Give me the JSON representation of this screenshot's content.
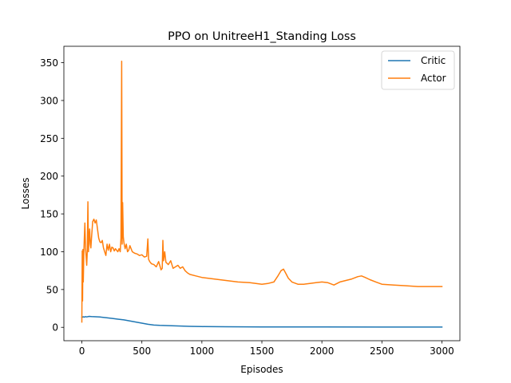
{
  "chart_data": {
    "type": "line",
    "title": "PPO on UnitreeH1_Standing Loss",
    "xlabel": "Episodes",
    "ylabel": "Losses",
    "xlim": [
      -150,
      3150
    ],
    "ylim": [
      -17.7,
      371.7
    ],
    "xticks": [
      0,
      500,
      1000,
      1500,
      2000,
      2500,
      3000
    ],
    "yticks": [
      0,
      50,
      100,
      150,
      200,
      250,
      300,
      350
    ],
    "grid": false,
    "legend_position": "top-right",
    "series": [
      {
        "name": "Critic",
        "color": "#1f77b4",
        "x": [
          0,
          10,
          20,
          30,
          40,
          60,
          80,
          100,
          150,
          200,
          250,
          300,
          350,
          400,
          450,
          500,
          550,
          600,
          650,
          700,
          800,
          900,
          1000,
          1200,
          1500,
          2000,
          2500,
          3000
        ],
        "y": [
          13,
          14,
          13.5,
          14.2,
          13.8,
          14.5,
          14.2,
          14.1,
          13.6,
          12.8,
          11.8,
          10.8,
          9.8,
          8.5,
          7.0,
          5.5,
          4.0,
          3.0,
          2.6,
          2.4,
          1.8,
          1.3,
          1.0,
          0.8,
          0.6,
          0.4,
          0.3,
          0.3
        ]
      },
      {
        "name": "Actor",
        "color": "#ff7f0e",
        "x": [
          0,
          3,
          6,
          9,
          12,
          16,
          20,
          25,
          30,
          35,
          40,
          45,
          50,
          55,
          60,
          65,
          70,
          75,
          80,
          90,
          100,
          110,
          120,
          130,
          140,
          150,
          160,
          170,
          180,
          190,
          200,
          210,
          220,
          230,
          240,
          250,
          260,
          270,
          280,
          290,
          300,
          310,
          320,
          326,
          332,
          336,
          340,
          345,
          350,
          360,
          370,
          380,
          390,
          400,
          420,
          440,
          460,
          480,
          500,
          520,
          540,
          550,
          556,
          565,
          580,
          600,
          620,
          640,
          660,
          670,
          675,
          680,
          690,
          700,
          720,
          740,
          760,
          780,
          800,
          820,
          840,
          860,
          880,
          900,
          950,
          1000,
          1100,
          1200,
          1300,
          1400,
          1500,
          1550,
          1600,
          1630,
          1660,
          1680,
          1700,
          1720,
          1750,
          1800,
          1850,
          1900,
          1950,
          2000,
          2050,
          2100,
          2150,
          2200,
          2250,
          2300,
          2330,
          2360,
          2400,
          2450,
          2500,
          2600,
          2700,
          2800,
          2900,
          3000
        ],
        "y": [
          7,
          101,
          35,
          103,
          60,
          98,
          118,
          138,
          105,
          95,
          82,
          100,
          166,
          100,
          120,
          130,
          110,
          105,
          118,
          140,
          143,
          138,
          142,
          130,
          118,
          113,
          112,
          115,
          105,
          100,
          95,
          110,
          102,
          110,
          100,
          106,
          105,
          101,
          104,
          102,
          100,
          104,
          100,
          118,
          352,
          110,
          165,
          120,
          112,
          104,
          110,
          100,
          102,
          108,
          100,
          98,
          97,
          95,
          96,
          93,
          94,
          117,
          90,
          87,
          84,
          83,
          80,
          87,
          76,
          78,
          115,
          88,
          100,
          86,
          83,
          88,
          78,
          80,
          82,
          78,
          80,
          75,
          72,
          70,
          68,
          66,
          64,
          62,
          60,
          59,
          57,
          58,
          60,
          67,
          75,
          77,
          71,
          65,
          60,
          57,
          57,
          58,
          59,
          60,
          59,
          56,
          60,
          62,
          64,
          67,
          68,
          66,
          63,
          60,
          57,
          56,
          55,
          54,
          54,
          54
        ]
      }
    ]
  }
}
